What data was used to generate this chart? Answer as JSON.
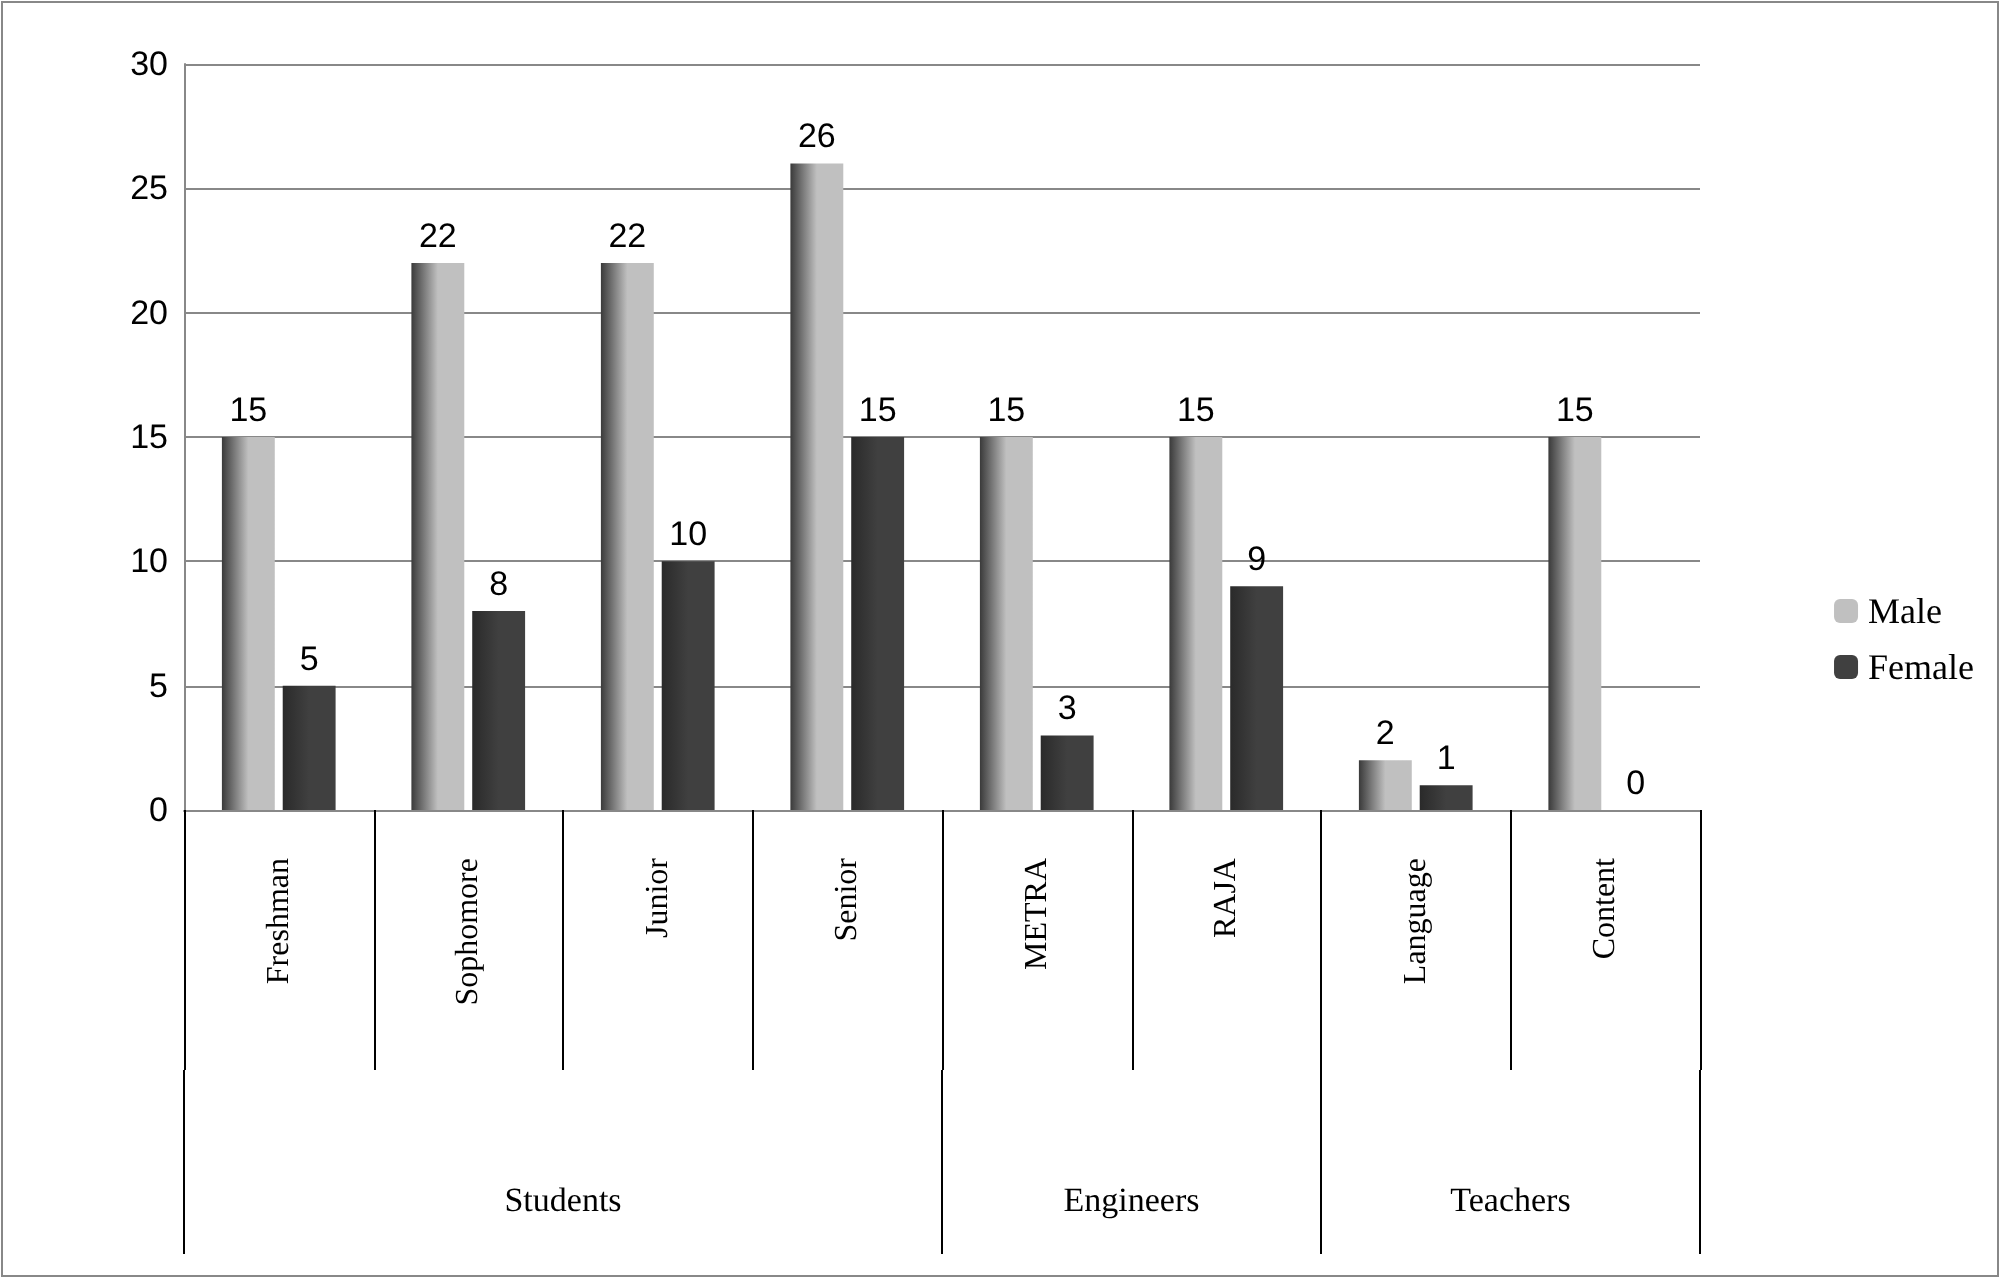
{
  "chart_data": {
    "type": "bar",
    "categories": [
      "Freshman",
      "Sophomore",
      "Junior",
      "Senior",
      "METRA",
      "RAJA",
      "Language",
      "Content"
    ],
    "series": [
      {
        "name": "Male",
        "color": "#c0c0c0",
        "values": [
          15,
          22,
          22,
          26,
          15,
          15,
          2,
          15
        ]
      },
      {
        "name": "Female",
        "color": "#404040",
        "values": [
          5,
          8,
          10,
          15,
          3,
          9,
          1,
          0
        ]
      }
    ],
    "annotations": [
      "Students",
      "Engineers",
      "Teachers"
    ],
    "ylim": [
      0,
      30
    ],
    "yticks": [
      0,
      5,
      10,
      15,
      20,
      25,
      30
    ],
    "grid": "y",
    "legend": "right",
    "data_labels": true
  }
}
